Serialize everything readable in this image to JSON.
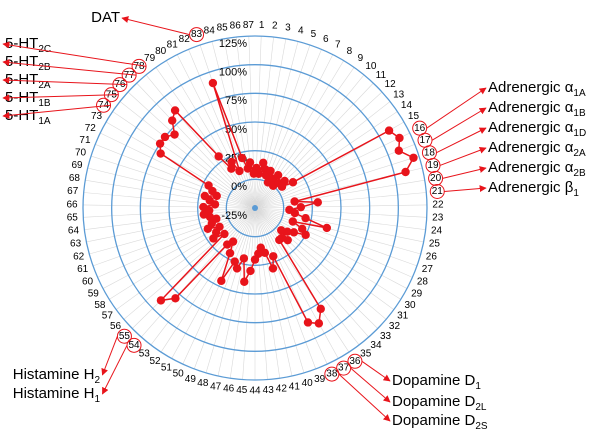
{
  "chart_data": {
    "type": "radar",
    "categories": [
      "1",
      "2",
      "3",
      "4",
      "5",
      "6",
      "7",
      "8",
      "9",
      "10",
      "11",
      "12",
      "13",
      "14",
      "15",
      "16",
      "17",
      "18",
      "19",
      "20",
      "21",
      "22",
      "23",
      "24",
      "25",
      "26",
      "27",
      "28",
      "29",
      "30",
      "31",
      "32",
      "33",
      "34",
      "35",
      "36",
      "37",
      "38",
      "39",
      "40",
      "41",
      "42",
      "43",
      "44",
      "45",
      "46",
      "47",
      "48",
      "49",
      "50",
      "51",
      "52",
      "53",
      "54",
      "55",
      "56",
      "57",
      "58",
      "59",
      "60",
      "61",
      "62",
      "63",
      "64",
      "65",
      "66",
      "67",
      "68",
      "69",
      "70",
      "71",
      "72",
      "73",
      "74",
      "75",
      "76",
      "77",
      "78",
      "79",
      "80",
      "81",
      "82",
      "83",
      "84",
      "85",
      "86",
      "87"
    ],
    "values": [
      10,
      5,
      15,
      10,
      5,
      10,
      0,
      5,
      10,
      0,
      5,
      10,
      5,
      15,
      110,
      115,
      110,
      120,
      110,
      10,
      30,
      15,
      5,
      10,
      20,
      40,
      10,
      20,
      25,
      15,
      10,
      5,
      15,
      10,
      10,
      80,
      90,
      85,
      20,
      30,
      15,
      10,
      15,
      20,
      30,
      40,
      20,
      30,
      25,
      45,
      20,
      10,
      15,
      80,
      90,
      10,
      20,
      15,
      10,
      20,
      15,
      10,
      15,
      20,
      15,
      20,
      10,
      15,
      20,
      10,
      15,
      20,
      70,
      75,
      75,
      70,
      80,
      85,
      30,
      15,
      20,
      10,
      90,
      20,
      10,
      15,
      5
    ],
    "color": "#e8141b",
    "rlim": [
      -25,
      125
    ],
    "rticks": [
      {
        "value": 125,
        "label": "125%"
      },
      {
        "value": 100,
        "label": "100%"
      },
      {
        "value": 75,
        "label": "75%"
      },
      {
        "value": 50,
        "label": "50%"
      },
      {
        "value": 25,
        "label": "25%"
      },
      {
        "value": 0,
        "label": "0%"
      },
      {
        "value": -25,
        "label": "-25%"
      }
    ],
    "grid_color": "#5b9bd5",
    "annotations": [
      {
        "text": "DAT"
      },
      {
        "text": "5-HT",
        "sub": "2C"
      },
      {
        "text": "5-HT",
        "sub": "2B"
      },
      {
        "text": "5-HT",
        "sub": "2A"
      },
      {
        "text": "5-HT",
        "sub": "1B"
      },
      {
        "text": "5-HT",
        "sub": "1A"
      },
      {
        "text": "Adrenergic α",
        "sub": "1A"
      },
      {
        "text": "Adrenergic α",
        "sub": "1B"
      },
      {
        "text": "Adrenergic α",
        "sub": "1D"
      },
      {
        "text": "Adrenergic α",
        "sub": "2A"
      },
      {
        "text": "Adrenergic α",
        "sub": "2B"
      },
      {
        "text": "Adrenergic β",
        "sub": "1"
      },
      {
        "text": "Dopamine D",
        "sub": "1"
      },
      {
        "text": "Dopamine D",
        "sub": "2L"
      },
      {
        "text": "Dopamine D",
        "sub": "2S"
      },
      {
        "text": "Histamine H",
        "sub": "2"
      },
      {
        "text": "Histamine H",
        "sub": "1"
      }
    ]
  }
}
